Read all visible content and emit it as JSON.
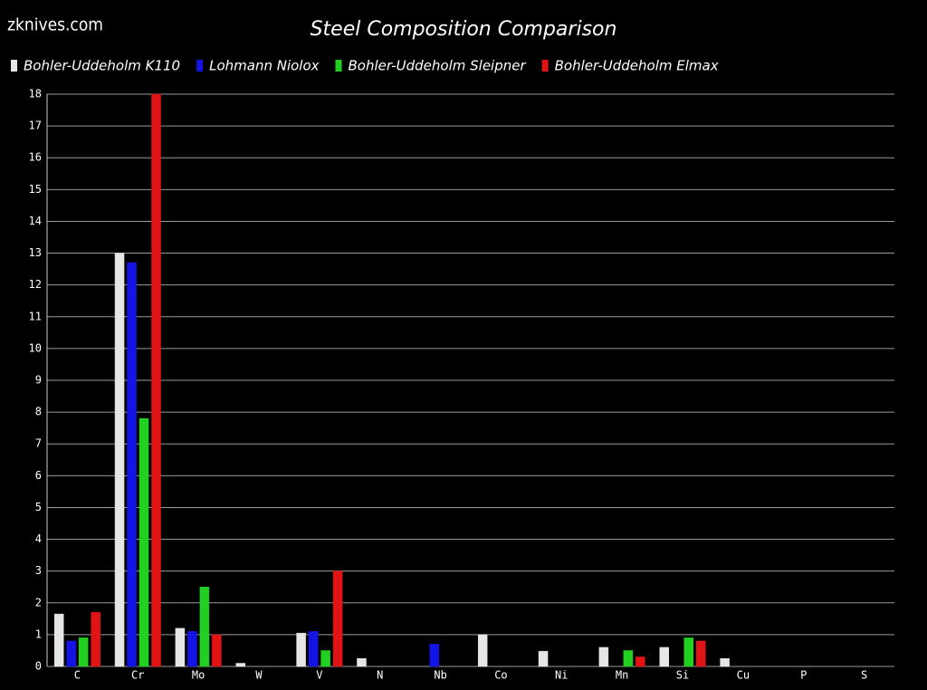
{
  "header": {
    "site": "zknives.com"
  },
  "chart_data": {
    "type": "bar",
    "title": "Steel Composition Comparison",
    "categories": [
      "C",
      "Cr",
      "Mo",
      "W",
      "V",
      "N",
      "Nb",
      "Co",
      "Ni",
      "Mn",
      "Si",
      "Cu",
      "P",
      "S"
    ],
    "series": [
      {
        "name": "Bohler-Uddeholm K110",
        "color": "#e6e6e6",
        "values": [
          1.65,
          13,
          1.2,
          0.1,
          1.05,
          0.25,
          0,
          1.0,
          0.48,
          0.6,
          0.6,
          0.25,
          0,
          0
        ]
      },
      {
        "name": "Lohmann Niolox",
        "color": "#1414e6",
        "values": [
          0.8,
          12.7,
          1.1,
          0,
          1.1,
          0,
          0.7,
          0,
          0,
          0,
          0,
          0,
          0,
          0
        ]
      },
      {
        "name": "Bohler-Uddeholm Sleipner",
        "color": "#22d022",
        "values": [
          0.9,
          7.8,
          2.5,
          0,
          0.5,
          0,
          0,
          0,
          0,
          0.5,
          0.9,
          0,
          0,
          0
        ]
      },
      {
        "name": "Bohler-Uddeholm Elmax",
        "color": "#e01414",
        "values": [
          1.7,
          18,
          1.0,
          0,
          3.0,
          0,
          0,
          0,
          0,
          0.3,
          0.8,
          0,
          0,
          0
        ]
      }
    ],
    "ylim": [
      0,
      18
    ],
    "yticks": [
      0,
      1,
      2,
      3,
      4,
      5,
      6,
      7,
      8,
      9,
      10,
      11,
      12,
      13,
      14,
      15,
      16,
      17,
      18
    ],
    "grid": true
  }
}
